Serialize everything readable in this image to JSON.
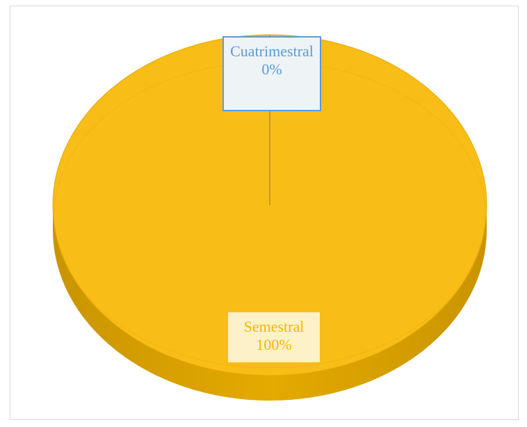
{
  "chart_data": {
    "type": "pie",
    "style": "3d",
    "categories": [
      "Cuatrimestral",
      "Semestral"
    ],
    "values": [
      0,
      100
    ],
    "data_labels": [
      {
        "category": "Cuatrimestral",
        "percent": "0%"
      },
      {
        "category": "Semestral",
        "percent": "100%"
      }
    ],
    "colors": {
      "Cuatrimestral": "#5b9bd5",
      "Semestral": "#f9bd17",
      "Semestral_side": "#d9a000"
    }
  }
}
